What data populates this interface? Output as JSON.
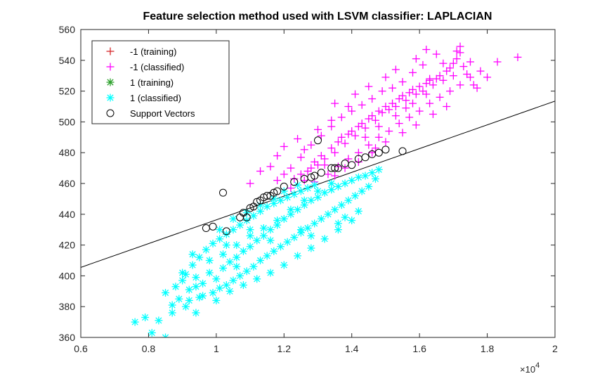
{
  "chart_data": {
    "type": "scatter",
    "title": "Feature selection method used with LSVM classifier: LAPLACIAN",
    "xlabel": "",
    "ylabel": "",
    "x_exponent_label": "×10",
    "x_exponent_power": "4",
    "xlim": [
      6000,
      20000
    ],
    "ylim": [
      360,
      560
    ],
    "x_ticks": [
      6000,
      8000,
      10000,
      12000,
      14000,
      16000,
      18000,
      20000
    ],
    "x_tick_labels": [
      "0.6",
      "0.8",
      "1",
      "1.2",
      "1.4",
      "1.6",
      "1.8",
      "2"
    ],
    "y_ticks": [
      360,
      380,
      400,
      420,
      440,
      460,
      480,
      500,
      520,
      540,
      560
    ],
    "y_tick_labels": [
      "360",
      "380",
      "400",
      "420",
      "440",
      "460",
      "480",
      "500",
      "520",
      "540",
      "560"
    ],
    "grid": false,
    "legend_position": "top-left",
    "legend": [
      {
        "label": "-1 (training)",
        "marker": "plus",
        "color": "#d62728"
      },
      {
        "label": "-1 (classified)",
        "marker": "plus",
        "color": "#ff00ff"
      },
      {
        "label": "1 (training)",
        "marker": "asterisk",
        "color": "#2ca02c"
      },
      {
        "label": "1 (classified)",
        "marker": "asterisk",
        "color": "#00ffff"
      },
      {
        "label": "Support Vectors",
        "marker": "circle",
        "color": "#000000"
      }
    ],
    "decision_boundary": {
      "x": [
        6000,
        20000
      ],
      "y": [
        405.5,
        513.5
      ],
      "color": "#000000"
    },
    "series": [
      {
        "name": "-1 (classified)",
        "marker": "plus",
        "color": "#ff00ff",
        "points": [
          [
            12200,
            457
          ],
          [
            12600,
            462
          ],
          [
            12700,
            468
          ],
          [
            12900,
            474
          ],
          [
            13000,
            472
          ],
          [
            13100,
            478
          ],
          [
            13200,
            476
          ],
          [
            13400,
            483
          ],
          [
            13500,
            480
          ],
          [
            13600,
            487
          ],
          [
            13700,
            490
          ],
          [
            13800,
            486
          ],
          [
            13900,
            492
          ],
          [
            14000,
            494
          ],
          [
            14100,
            491
          ],
          [
            14200,
            497
          ],
          [
            14300,
            499
          ],
          [
            14400,
            496
          ],
          [
            14500,
            502
          ],
          [
            14600,
            504
          ],
          [
            14700,
            501
          ],
          [
            14800,
            507
          ],
          [
            14900,
            506
          ],
          [
            15000,
            510
          ],
          [
            15100,
            508
          ],
          [
            15200,
            512
          ],
          [
            15300,
            510
          ],
          [
            15400,
            515
          ],
          [
            15500,
            517
          ],
          [
            15600,
            514
          ],
          [
            15700,
            519
          ],
          [
            15800,
            521
          ],
          [
            15900,
            518
          ],
          [
            16000,
            523
          ],
          [
            16100,
            520
          ],
          [
            16200,
            525
          ],
          [
            16300,
            527
          ],
          [
            16400,
            524
          ],
          [
            16500,
            528
          ],
          [
            16600,
            530
          ],
          [
            16700,
            527
          ],
          [
            16800,
            533
          ],
          [
            16900,
            535
          ],
          [
            17000,
            538
          ],
          [
            17100,
            541
          ],
          [
            17200,
            545
          ],
          [
            17300,
            536
          ],
          [
            17400,
            531
          ],
          [
            17500,
            539
          ],
          [
            17600,
            524
          ],
          [
            16100,
            537
          ],
          [
            16300,
            528
          ],
          [
            16700,
            538
          ],
          [
            15800,
            532
          ],
          [
            15500,
            526
          ],
          [
            15200,
            522
          ],
          [
            14900,
            520
          ],
          [
            14600,
            515
          ],
          [
            14300,
            511
          ],
          [
            14000,
            507
          ],
          [
            13700,
            503
          ],
          [
            13400,
            497
          ],
          [
            13100,
            491
          ],
          [
            12800,
            485
          ],
          [
            12500,
            477
          ],
          [
            12200,
            470
          ],
          [
            12000,
            466
          ],
          [
            11800,
            462
          ],
          [
            13600,
            471
          ],
          [
            13900,
            476
          ],
          [
            14200,
            480
          ],
          [
            14500,
            485
          ],
          [
            14800,
            490
          ],
          [
            15100,
            494
          ],
          [
            15400,
            499
          ],
          [
            15700,
            503
          ],
          [
            16000,
            507
          ],
          [
            16300,
            512
          ],
          [
            16600,
            516
          ],
          [
            16900,
            520
          ],
          [
            17200,
            524
          ],
          [
            17500,
            529
          ],
          [
            17800,
            533
          ],
          [
            13300,
            466
          ],
          [
            12900,
            461
          ],
          [
            14700,
            483
          ],
          [
            15600,
            509
          ],
          [
            16200,
            518
          ],
          [
            17000,
            530
          ],
          [
            17700,
            522
          ],
          [
            18300,
            539
          ],
          [
            18900,
            542
          ],
          [
            18000,
            529
          ],
          [
            17200,
            549
          ],
          [
            16200,
            547
          ],
          [
            15300,
            534
          ],
          [
            14500,
            523
          ],
          [
            13900,
            510
          ],
          [
            13400,
            501
          ],
          [
            13000,
            495
          ],
          [
            12600,
            482
          ],
          [
            11800,
            478
          ],
          [
            11600,
            471
          ],
          [
            11300,
            468
          ],
          [
            11000,
            460
          ],
          [
            12400,
            489
          ],
          [
            12000,
            484
          ],
          [
            13500,
            512
          ],
          [
            14100,
            518
          ],
          [
            15000,
            529
          ],
          [
            15900,
            541
          ],
          [
            16500,
            544
          ],
          [
            17100,
            546
          ],
          [
            16800,
            510
          ],
          [
            16400,
            505
          ],
          [
            15900,
            498
          ],
          [
            15500,
            493
          ],
          [
            15000,
            487
          ],
          [
            14600,
            480
          ],
          [
            14200,
            474
          ],
          [
            13800,
            470
          ],
          [
            13500,
            465
          ],
          [
            12300,
            463
          ],
          [
            12500,
            466
          ],
          [
            12800,
            470
          ],
          [
            13200,
            472
          ],
          [
            14400,
            490
          ],
          [
            14800,
            497
          ],
          [
            15300,
            504
          ],
          [
            15800,
            512
          ]
        ]
      },
      {
        "name": "1 (classified)",
        "marker": "asterisk",
        "color": "#00ffff",
        "points": [
          [
            7600,
            370
          ],
          [
            7900,
            373
          ],
          [
            8100,
            363
          ],
          [
            8500,
            360
          ],
          [
            8300,
            371
          ],
          [
            8700,
            376
          ],
          [
            8500,
            389
          ],
          [
            8900,
            385
          ],
          [
            9100,
            380
          ],
          [
            9400,
            376
          ],
          [
            8800,
            393
          ],
          [
            9000,
            397
          ],
          [
            9200,
            391
          ],
          [
            9400,
            399
          ],
          [
            9600,
            395
          ],
          [
            9800,
            402
          ],
          [
            10000,
            398
          ],
          [
            10200,
            405
          ],
          [
            10400,
            409
          ],
          [
            10600,
            412
          ],
          [
            10800,
            416
          ],
          [
            11000,
            419
          ],
          [
            11200,
            423
          ],
          [
            11400,
            426
          ],
          [
            11600,
            430
          ],
          [
            11800,
            433
          ],
          [
            12000,
            437
          ],
          [
            12200,
            440
          ],
          [
            12400,
            443
          ],
          [
            12600,
            446
          ],
          [
            12800,
            449
          ],
          [
            13000,
            451
          ],
          [
            13200,
            454
          ],
          [
            13400,
            456
          ],
          [
            13600,
            458
          ],
          [
            13800,
            460
          ],
          [
            14000,
            462
          ],
          [
            14200,
            464
          ],
          [
            14400,
            465
          ],
          [
            14600,
            467
          ],
          [
            14800,
            469
          ],
          [
            9300,
            407
          ],
          [
            9500,
            412
          ],
          [
            9700,
            417
          ],
          [
            9900,
            421
          ],
          [
            10100,
            424
          ],
          [
            10300,
            427
          ],
          [
            10500,
            430
          ],
          [
            10700,
            433
          ],
          [
            10900,
            436
          ],
          [
            11100,
            439
          ],
          [
            11300,
            442
          ],
          [
            11500,
            445
          ],
          [
            11700,
            447
          ],
          [
            11900,
            449
          ],
          [
            12100,
            451
          ],
          [
            12300,
            453
          ],
          [
            12500,
            455
          ],
          [
            12700,
            457
          ],
          [
            12900,
            459
          ],
          [
            9900,
            389
          ],
          [
            10100,
            392
          ],
          [
            10300,
            394
          ],
          [
            10500,
            397
          ],
          [
            10700,
            400
          ],
          [
            10900,
            403
          ],
          [
            11100,
            406
          ],
          [
            11300,
            410
          ],
          [
            11500,
            413
          ],
          [
            11700,
            416
          ],
          [
            11900,
            419
          ],
          [
            12100,
            422
          ],
          [
            12300,
            425
          ],
          [
            12500,
            428
          ],
          [
            12700,
            431
          ],
          [
            12900,
            434
          ],
          [
            13100,
            437
          ],
          [
            13300,
            440
          ],
          [
            13500,
            443
          ],
          [
            13700,
            446
          ],
          [
            13900,
            449
          ],
          [
            14100,
            452
          ],
          [
            14300,
            455
          ],
          [
            14500,
            458
          ],
          [
            9200,
            384
          ],
          [
            9600,
            387
          ],
          [
            10000,
            384
          ],
          [
            10400,
            390
          ],
          [
            10800,
            394
          ],
          [
            11200,
            398
          ],
          [
            11600,
            402
          ],
          [
            12000,
            407
          ],
          [
            12400,
            413
          ],
          [
            12800,
            418
          ],
          [
            13200,
            424
          ],
          [
            13600,
            430
          ],
          [
            14000,
            436
          ],
          [
            8700,
            381
          ],
          [
            9100,
            401
          ],
          [
            9500,
            386
          ],
          [
            9800,
            410
          ],
          [
            10200,
            414
          ],
          [
            10600,
            420
          ],
          [
            11000,
            426
          ],
          [
            11400,
            431
          ],
          [
            11800,
            436
          ],
          [
            12200,
            443
          ],
          [
            12600,
            449
          ],
          [
            13000,
            455
          ],
          [
            13400,
            460
          ],
          [
            10100,
            430
          ],
          [
            10500,
            437
          ],
          [
            10900,
            441
          ],
          [
            11300,
            446
          ],
          [
            11700,
            450
          ],
          [
            9000,
            402
          ],
          [
            9400,
            393
          ],
          [
            12000,
            455
          ],
          [
            12400,
            459
          ],
          [
            13800,
            438
          ],
          [
            14200,
            442
          ],
          [
            9300,
            414
          ],
          [
            10300,
            420
          ],
          [
            11000,
            430
          ],
          [
            12500,
            430
          ],
          [
            13600,
            434
          ],
          [
            14700,
            463
          ],
          [
            12800,
            426
          ],
          [
            11600,
            423
          ],
          [
            10600,
            406
          ]
        ]
      },
      {
        "name": "Support Vectors",
        "marker": "circle",
        "color": "#000000",
        "points": [
          [
            10200,
            454
          ],
          [
            9700,
            431
          ],
          [
            9900,
            432
          ],
          [
            10300,
            429
          ],
          [
            10700,
            438
          ],
          [
            10800,
            441
          ],
          [
            11000,
            444
          ],
          [
            11100,
            445
          ],
          [
            11300,
            449
          ],
          [
            11400,
            451
          ],
          [
            11500,
            452
          ],
          [
            11700,
            454
          ],
          [
            11800,
            455
          ],
          [
            12000,
            458
          ],
          [
            12300,
            461
          ],
          [
            12600,
            463
          ],
          [
            12900,
            465
          ],
          [
            13100,
            467
          ],
          [
            13400,
            470
          ],
          [
            13800,
            473
          ],
          [
            14200,
            476
          ],
          [
            14400,
            477
          ],
          [
            14600,
            479
          ],
          [
            14800,
            480
          ],
          [
            15000,
            482
          ],
          [
            15500,
            481
          ],
          [
            14000,
            472
          ],
          [
            13600,
            470
          ],
          [
            11600,
            452
          ],
          [
            12800,
            464
          ],
          [
            13000,
            488
          ],
          [
            13500,
            470
          ],
          [
            10900,
            438
          ],
          [
            11200,
            448
          ]
        ]
      }
    ]
  }
}
